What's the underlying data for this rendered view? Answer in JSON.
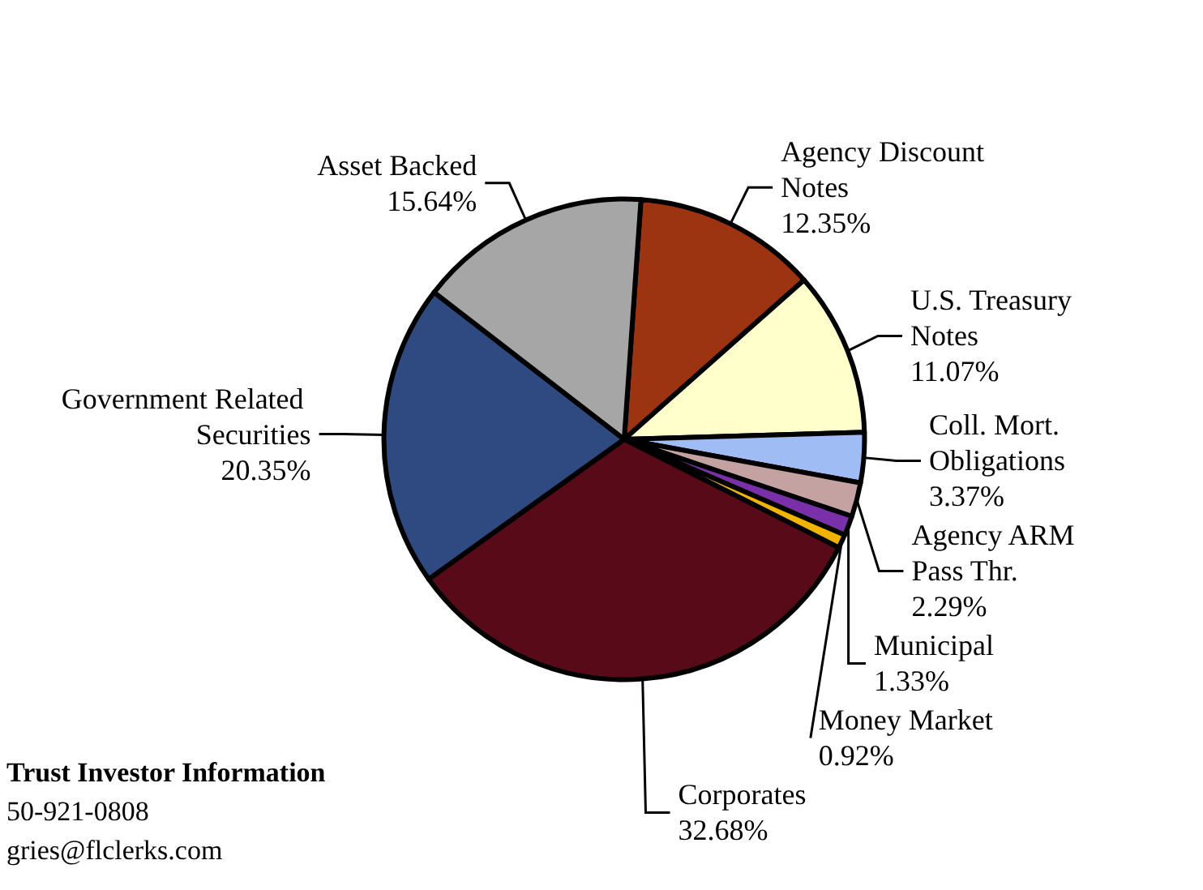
{
  "chart_data": {
    "type": "pie",
    "categories": [
      "Agency Discount Notes",
      "U.S. Treasury Notes",
      "Coll. Mort. Obligations",
      "Agency ARM Pass Thr.",
      "Municipal",
      "Money Market",
      "Corporates",
      "Government Related Securities",
      "Asset Backed"
    ],
    "values": [
      12.35,
      11.07,
      3.37,
      2.29,
      1.33,
      0.92,
      32.68,
      20.35,
      15.64
    ],
    "value_labels": [
      "12.35%",
      "11.07%",
      "3.37%",
      "2.29%",
      "1.33%",
      "0.92%",
      "32.68%",
      "20.35%",
      "15.64%"
    ],
    "colors": [
      "#9c3412",
      "#ffffcc",
      "#9fbcf5",
      "#c4a2a2",
      "#7a30a8",
      "#f0b400",
      "#580a18",
      "#2e4a80",
      "#a6a6a6"
    ],
    "annotations": [
      "Trust Investor Information",
      "50-921-0808",
      "gries@flclerks.com"
    ]
  }
}
